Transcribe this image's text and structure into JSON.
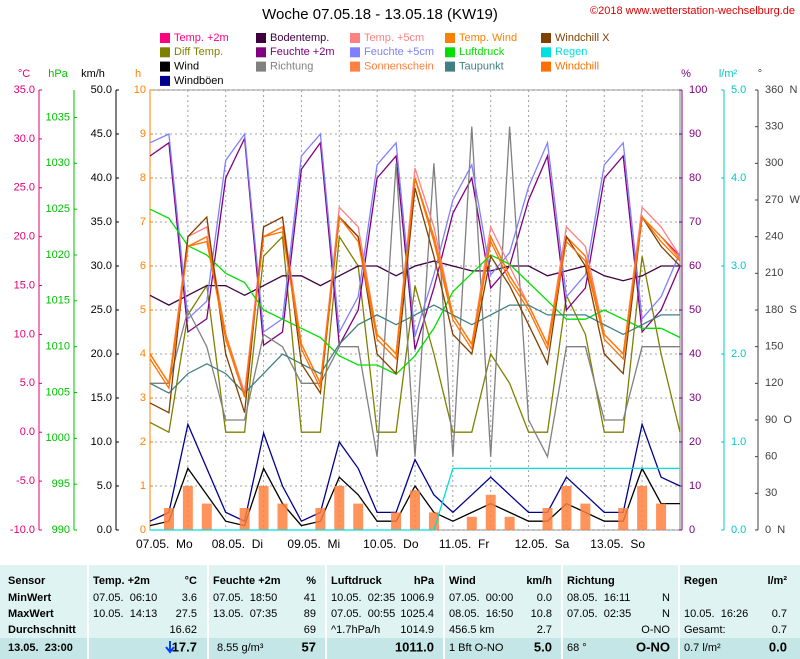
{
  "chart_data": {
    "type": "line",
    "title": "Woche 07.05.18 - 13.05.18 (KW19)",
    "copyright": "©2018 www.wetterstation-wechselburg.de",
    "xlim": [
      0,
      168
    ],
    "x": [
      0,
      6,
      12,
      18,
      24,
      30,
      36,
      42,
      48,
      54,
      60,
      66,
      72,
      78,
      84,
      90,
      96,
      102,
      108,
      114,
      120,
      126,
      132,
      138,
      144,
      150,
      156,
      162,
      168
    ],
    "xticks": [
      {
        "value": 0,
        "label": "07.05.  Mo"
      },
      {
        "value": 24,
        "label": "08.05.  Di"
      },
      {
        "value": 48,
        "label": "09.05.  Mi"
      },
      {
        "value": 72,
        "label": "10.05.  Do"
      },
      {
        "value": 96,
        "label": "11.05.  Fr"
      },
      {
        "value": 120,
        "label": "12.05.  Sa"
      },
      {
        "value": 144,
        "label": "13.05.  So"
      }
    ],
    "x_minor_ticks": [
      12,
      36,
      60,
      84,
      108,
      132,
      156
    ],
    "grid": true,
    "axes": [
      {
        "label": "°C",
        "color": "#e0007a",
        "lim": [
          -10,
          35
        ],
        "ticks": [
          {
            "value": -10,
            "label": "-10.0"
          },
          {
            "value": -5,
            "label": "-5.0"
          },
          {
            "value": 0,
            "label": "0.0"
          },
          {
            "value": 5,
            "label": "5.0"
          },
          {
            "value": 10,
            "label": "10.0"
          },
          {
            "value": 15,
            "label": "15.0"
          },
          {
            "value": 20,
            "label": "20.0"
          },
          {
            "value": 25,
            "label": "25.0"
          },
          {
            "value": 30,
            "label": "30.0"
          },
          {
            "value": 35,
            "label": "35.0"
          }
        ]
      },
      {
        "label": "hPa",
        "color": "#00c000",
        "lim": [
          990,
          1038
        ],
        "ticks": [
          990,
          995,
          1000,
          1005,
          1010,
          1015,
          1020,
          1025,
          1030,
          1035
        ]
      },
      {
        "label": "km/h",
        "color": "#000000",
        "lim": [
          0,
          50
        ],
        "ticks": [
          {
            "value": 0,
            "label": "0.0"
          },
          {
            "value": 5,
            "label": "5.0"
          },
          {
            "value": 10,
            "label": "10.0"
          },
          {
            "value": 15,
            "label": "15.0"
          },
          {
            "value": 20,
            "label": "20.0"
          },
          {
            "value": 25,
            "label": "25.0"
          },
          {
            "value": 30,
            "label": "30.0"
          },
          {
            "value": 35,
            "label": "35.0"
          },
          {
            "value": 40,
            "label": "40.0"
          },
          {
            "value": 45,
            "label": "45.0"
          },
          {
            "value": 50,
            "label": "50.0"
          }
        ]
      },
      {
        "label": "h",
        "color": "#ff8000",
        "lim": [
          0,
          10
        ],
        "ticks": [
          0,
          1,
          2,
          3,
          4,
          5,
          6,
          7,
          8,
          9,
          10
        ]
      },
      {
        "label": "%",
        "color": "#800080",
        "lim": [
          0,
          100
        ],
        "ticks": [
          0,
          10,
          20,
          30,
          40,
          50,
          60,
          70,
          80,
          90,
          100
        ]
      },
      {
        "label": "l/m²",
        "color": "#00c8c8",
        "lim": [
          0,
          5
        ],
        "ticks": [
          {
            "value": 0,
            "label": "0.0"
          },
          {
            "value": 1,
            "label": "1.0"
          },
          {
            "value": 2,
            "label": "2.0"
          },
          {
            "value": 3,
            "label": "3.0"
          },
          {
            "value": 4,
            "label": "4.0"
          },
          {
            "value": 5,
            "label": "5.0"
          }
        ]
      },
      {
        "label": "°",
        "color": "#404040",
        "lim": [
          0,
          360
        ],
        "ticks": [
          {
            "value": 0,
            "label": "0  N"
          },
          30,
          60,
          {
            "value": 90,
            "label": "90  O"
          },
          120,
          150,
          {
            "value": 180,
            "label": "180  S"
          },
          210,
          240,
          {
            "value": 270,
            "label": "270  W"
          },
          300,
          330,
          {
            "value": 360,
            "label": "360  N"
          }
        ]
      }
    ],
    "series": [
      {
        "name": "Temp. +2m",
        "color": "#ff0080",
        "axis": "°C",
        "values": [
          8,
          5,
          19,
          20,
          10,
          4,
          20,
          21,
          9,
          5,
          22,
          20,
          10,
          8,
          26,
          20,
          12,
          9,
          20,
          16,
          13,
          9,
          20,
          18,
          10,
          8,
          22,
          20,
          18
        ]
      },
      {
        "name": "Diff Temp.",
        "color": "#808000",
        "axis": "°C",
        "values": [
          1,
          0,
          12,
          15,
          0,
          0,
          18,
          20,
          0,
          0,
          20,
          17,
          0,
          0,
          15,
          8,
          0,
          0,
          8,
          5,
          0,
          0,
          14,
          10,
          0,
          0,
          18,
          8,
          0
        ]
      },
      {
        "name": "Wind",
        "color": "#000000",
        "axis": "km/h",
        "values": [
          0.5,
          1,
          7,
          4,
          1,
          0.5,
          7,
          3,
          0.5,
          1,
          6,
          4,
          1,
          1,
          5,
          2,
          1,
          2,
          3,
          2,
          1,
          1,
          3,
          2,
          1,
          1,
          7,
          3,
          3
        ]
      },
      {
        "name": "Windböen",
        "color": "#000090",
        "axis": "km/h",
        "values": [
          1,
          2,
          12,
          7,
          2,
          1,
          11,
          5,
          1,
          2,
          10,
          7,
          2,
          2,
          8,
          4,
          2,
          4,
          6,
          4,
          2,
          2,
          6,
          4,
          2,
          2,
          12,
          6,
          5
        ]
      },
      {
        "name": "Bodentemp.",
        "color": "#400040",
        "axis": "°C",
        "values": [
          14,
          13,
          14,
          15,
          15,
          14,
          15,
          16,
          16,
          15,
          16,
          17,
          17,
          16,
          17,
          17.5,
          17,
          16.5,
          16.5,
          17,
          17,
          16,
          16.5,
          17,
          16,
          15.5,
          16,
          17,
          17
        ]
      },
      {
        "name": "Feuchte +2m",
        "color": "#800080",
        "axis": "%",
        "values": [
          85,
          88,
          45,
          48,
          80,
          89,
          42,
          45,
          82,
          88,
          42,
          50,
          80,
          85,
          41,
          55,
          72,
          80,
          55,
          60,
          75,
          85,
          50,
          55,
          80,
          85,
          45,
          50,
          60
        ]
      },
      {
        "name": "Richtung",
        "color": "#808080",
        "axis": "°",
        "values": [
          120,
          120,
          180,
          150,
          90,
          90,
          160,
          150,
          120,
          120,
          150,
          150,
          60,
          300,
          60,
          300,
          60,
          330,
          60,
          330,
          90,
          60,
          150,
          150,
          90,
          90,
          150,
          150,
          150
        ]
      },
      {
        "name": "Temp. +5cm",
        "color": "#ff8080",
        "axis": "°C",
        "values": [
          8,
          5,
          20,
          21,
          10,
          4,
          21,
          22,
          9,
          5,
          23,
          21,
          10,
          8,
          27,
          21,
          12,
          9,
          21,
          17,
          13,
          9,
          21,
          19,
          10,
          8,
          23,
          21,
          18
        ]
      },
      {
        "name": "Feuchte +5cm",
        "color": "#8080ff",
        "axis": "%",
        "values": [
          88,
          90,
          48,
          52,
          84,
          90,
          45,
          48,
          85,
          90,
          45,
          53,
          83,
          88,
          44,
          58,
          75,
          83,
          58,
          63,
          78,
          88,
          53,
          58,
          83,
          88,
          48,
          53,
          63
        ]
      },
      {
        "name": "Sonnenschein",
        "color": "#ff8040",
        "axis": "h",
        "style": "bar",
        "values": [
          0,
          0.5,
          1,
          0.6,
          0,
          0.5,
          1,
          0.6,
          0,
          0.5,
          1,
          0.6,
          0,
          0.4,
          0.9,
          0.4,
          0,
          0.3,
          0.8,
          0.3,
          0,
          0.5,
          1,
          0.6,
          0,
          0.5,
          1,
          0.6,
          0
        ]
      },
      {
        "name": "Temp. Wind",
        "color": "#ff8000",
        "axis": "°C",
        "values": [
          8,
          5,
          19,
          20,
          10,
          3.6,
          20,
          21,
          9,
          5,
          22,
          20,
          10,
          8,
          26,
          20,
          12,
          9,
          20,
          16,
          13,
          9,
          20,
          18,
          10,
          8,
          22,
          20,
          17.7
        ]
      },
      {
        "name": "Luftdruck",
        "color": "#00e000",
        "axis": "hPa",
        "values": [
          1025,
          1024,
          1021,
          1020,
          1018,
          1017,
          1014,
          1013,
          1012,
          1011,
          1009,
          1008,
          1008,
          1007,
          1009,
          1012,
          1016,
          1018,
          1020,
          1019,
          1017,
          1015,
          1013,
          1013,
          1014,
          1013,
          1012,
          1012,
          1011
        ]
      },
      {
        "name": "Taupunkt",
        "color": "#408080",
        "axis": "°C",
        "values": [
          5,
          4,
          6,
          7,
          6,
          4,
          6,
          8,
          7,
          6,
          9,
          11,
          12,
          11,
          12,
          13,
          12,
          11,
          12,
          13,
          13,
          12,
          12,
          12,
          11,
          10,
          11,
          12,
          12
        ]
      },
      {
        "name": "Windchill X",
        "color": "#804000",
        "axis": "°C",
        "values": [
          3,
          2,
          20,
          22,
          8,
          2,
          21,
          22,
          7,
          4,
          22,
          20,
          8,
          6,
          25,
          18,
          10,
          8,
          18,
          15,
          11,
          7,
          20,
          17,
          8,
          6,
          22,
          19,
          17
        ]
      },
      {
        "name": "Regen",
        "color": "#00e0e0",
        "axis": "l/m²",
        "values": [
          0,
          0,
          0,
          0,
          0,
          0,
          0,
          0,
          0,
          0,
          0,
          0,
          0,
          0,
          0,
          0,
          0.7,
          0.7,
          0.7,
          0.7,
          0.7,
          0.7,
          0.7,
          0.7,
          0.7,
          0.7,
          0.7,
          0.7,
          0.7
        ]
      },
      {
        "name": "Windchill",
        "color": "#ff7000",
        "axis": "°C",
        "values": [
          7.5,
          4.5,
          19,
          19.5,
          9.5,
          3.6,
          20,
          20.5,
          8.5,
          4.5,
          22,
          19.5,
          9.5,
          7.5,
          26,
          19.5,
          11.5,
          8.5,
          19.5,
          15.5,
          12.5,
          8.5,
          19.5,
          17.5,
          9.5,
          7.5,
          22,
          19.5,
          17.5
        ]
      }
    ]
  },
  "table": {
    "rows": [
      [
        "Sensor",
        "Temp. +2m",
        "°C",
        "Feuchte +2m",
        "%",
        "Luftdruck",
        "hPa",
        "Wind",
        "km/h",
        "Richtung",
        null,
        "Regen",
        "l/m²"
      ],
      [
        "MinWert",
        "07.05.  06:10",
        "3.6",
        "07.05.  18:50",
        "41",
        "10.05.  02:35",
        "1006.9",
        "07.05.  00:00",
        "0.0",
        "08.05.  16:11",
        "N",
        null,
        null
      ],
      [
        "MaxWert",
        "10.05.  14:13",
        "27.5",
        "13.05.  07:35",
        "89",
        "07.05.  00:55",
        "1025.4",
        "08.05.  16:50",
        "10.8",
        "07.05.  02:35",
        "N",
        "10.05.  16:26",
        "0.7"
      ],
      [
        "Durchschnitt",
        null,
        "16.62",
        null,
        "69",
        "^1.7hPa/h",
        "1014.9",
        "456.5 km",
        "2.7",
        null,
        "O-NO",
        "Gesamt:",
        "0.7"
      ],
      [
        "13.05.  23:00",
        null,
        "17.7",
        "8.55 g/m³",
        "57",
        null,
        "1011.0",
        "1 Bft O-NO",
        "5.0",
        "68 °",
        "O-NO",
        "0.7 l/m²",
        "0.0"
      ]
    ]
  }
}
